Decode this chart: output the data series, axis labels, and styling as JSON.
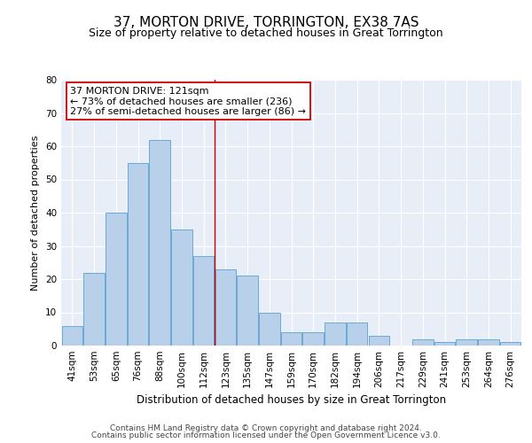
{
  "title": "37, MORTON DRIVE, TORRINGTON, EX38 7AS",
  "subtitle": "Size of property relative to detached houses in Great Torrington",
  "xlabel": "Distribution of detached houses by size in Great Torrington",
  "ylabel": "Number of detached properties",
  "categories": [
    "41sqm",
    "53sqm",
    "65sqm",
    "76sqm",
    "88sqm",
    "100sqm",
    "112sqm",
    "123sqm",
    "135sqm",
    "147sqm",
    "159sqm",
    "170sqm",
    "182sqm",
    "194sqm",
    "206sqm",
    "217sqm",
    "229sqm",
    "241sqm",
    "253sqm",
    "264sqm",
    "276sqm"
  ],
  "values": [
    6,
    22,
    40,
    55,
    62,
    35,
    27,
    23,
    21,
    10,
    4,
    4,
    7,
    7,
    3,
    0,
    2,
    1,
    2,
    2,
    1
  ],
  "bar_color": "#b8d0ea",
  "bar_edge_color": "#6aaad4",
  "background_color": "#e8eef8",
  "grid_color": "#ffffff",
  "vline_x_index": 7,
  "vline_color": "#cc0000",
  "annotation_line1": "37 MORTON DRIVE: 121sqm",
  "annotation_line2": "← 73% of detached houses are smaller (236)",
  "annotation_line3": "27% of semi-detached houses are larger (86) →",
  "annotation_box_color": "#cc0000",
  "ylim": [
    0,
    80
  ],
  "yticks": [
    0,
    10,
    20,
    30,
    40,
    50,
    60,
    70,
    80
  ],
  "footer_line1": "Contains HM Land Registry data © Crown copyright and database right 2024.",
  "footer_line2": "Contains public sector information licensed under the Open Government Licence v3.0.",
  "title_fontsize": 11,
  "subtitle_fontsize": 9,
  "xlabel_fontsize": 8.5,
  "ylabel_fontsize": 8,
  "tick_fontsize": 7.5,
  "annotation_fontsize": 8,
  "footer_fontsize": 6.5
}
